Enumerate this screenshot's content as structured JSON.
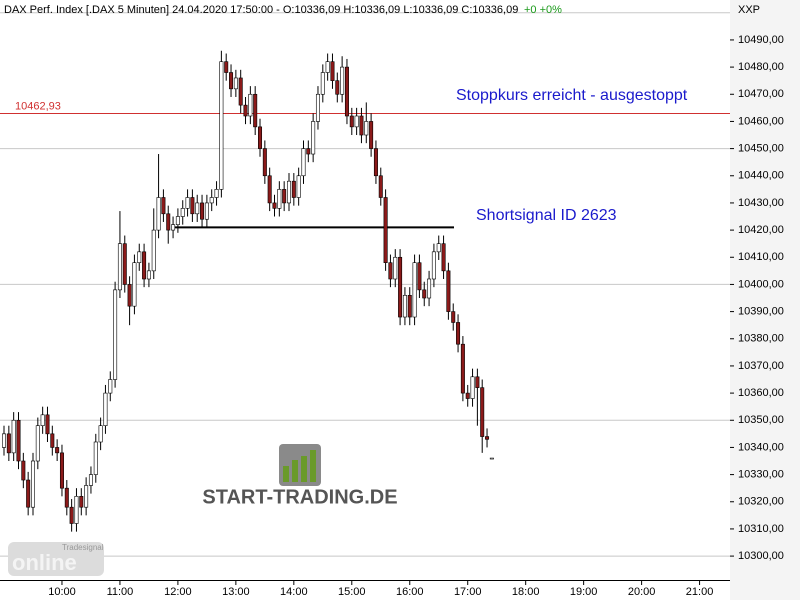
{
  "header": {
    "title": "DAX Perf. Index [.DAX  5 Minuten] 24.04.2020 17:50:00 - O:10336,09 H:10336,09 L:10336,09 C:10336,09",
    "change": "+0 +0%",
    "axis_label": "XXP"
  },
  "watermark": {
    "brand": "START-TRADING.DE",
    "logo_small": "Tradesignal",
    "logo_big": "online"
  },
  "chart_data": {
    "type": "candlestick",
    "annotations": [
      "Stoppkurs erreicht - ausgestoppt",
      "Shortsignal ID 2623"
    ],
    "stop_level": {
      "value": 10462.93,
      "label": "10462,93"
    },
    "signal_level": 10421,
    "ylim": [
      10291.2,
      10504.7
    ],
    "yticks": [
      {
        "value": 10300,
        "label": "10300,00"
      },
      {
        "value": 10310,
        "label": "10310,00"
      },
      {
        "value": 10320,
        "label": "10320,00"
      },
      {
        "value": 10330,
        "label": "10330,00"
      },
      {
        "value": 10340,
        "label": "10340,00"
      },
      {
        "value": 10350,
        "label": "10350,00"
      },
      {
        "value": 10360,
        "label": "10360,00"
      },
      {
        "value": 10370,
        "label": "10370,00"
      },
      {
        "value": 10380,
        "label": "10380,00"
      },
      {
        "value": 10390,
        "label": "10390,00"
      },
      {
        "value": 10400,
        "label": "10400,00"
      },
      {
        "value": 10410,
        "label": "10410,00"
      },
      {
        "value": 10420,
        "label": "10420,00"
      },
      {
        "value": 10430,
        "label": "10430,00"
      },
      {
        "value": 10440,
        "label": "10440,00"
      },
      {
        "value": 10450,
        "label": "10450,00"
      },
      {
        "value": 10460,
        "label": "10460,00"
      },
      {
        "value": 10470,
        "label": "10470,00"
      },
      {
        "value": 10480,
        "label": "10480,00"
      },
      {
        "value": 10490,
        "label": "10490,00"
      }
    ],
    "grid": [
      10300,
      10350,
      10400,
      10450,
      10500
    ],
    "xlim": [
      -0.83,
      150.3
    ],
    "xticks": [
      {
        "value": 12,
        "label": "10:00"
      },
      {
        "value": 24,
        "label": "11:00"
      },
      {
        "value": 36,
        "label": "12:00"
      },
      {
        "value": 48,
        "label": "13:00"
      },
      {
        "value": 60,
        "label": "14:00"
      },
      {
        "value": 72,
        "label": "15:00"
      },
      {
        "value": 84,
        "label": "16:00"
      },
      {
        "value": 96,
        "label": "17:00"
      },
      {
        "value": 108,
        "label": "18:00"
      },
      {
        "value": 120,
        "label": "19:00"
      },
      {
        "value": 132,
        "label": "20:00"
      },
      {
        "value": 144,
        "label": "21:00"
      }
    ],
    "up_color": "#ffffff",
    "down_color": "#8b1a1a",
    "stop_color": "#d03030",
    "open": [
      10340,
      10345,
      10338,
      10350,
      10335,
      10328,
      10318,
      10335,
      10348,
      10352,
      10345,
      10340,
      10338,
      10325,
      10318,
      10312,
      10322,
      10318,
      10326,
      10330,
      10342,
      10348,
      10360,
      10365,
      10398,
      10415,
      10400,
      10392,
      10408,
      10412,
      10402,
      10405,
      10420,
      10432,
      10426,
      10420,
      10422,
      10425,
      10428,
      10432,
      10426,
      10430,
      10424,
      10430,
      10432,
      10435,
      10482,
      10478,
      10472,
      10476,
      10466,
      10462,
      10470,
      10458,
      10450,
      10440,
      10430,
      10428,
      10435,
      10430,
      10438,
      10432,
      10440,
      10450,
      10448,
      10460,
      10470,
      10478,
      10482,
      10475,
      10470,
      10480,
      10462,
      10458,
      10462,
      10455,
      10460,
      10450,
      10440,
      10432,
      10408,
      10402,
      10410,
      10388,
      10396,
      10388,
      10408,
      10398,
      10395,
      10402,
      10412,
      10415,
      10405,
      10390,
      10386,
      10378,
      10360,
      10358,
      10366,
      10362,
      10344,
      10336.09
    ],
    "high": [
      10348,
      10348,
      10353,
      10353,
      10338,
      10331,
      10338,
      10351,
      10355,
      10355,
      10348,
      10343,
      10341,
      10328,
      10321,
      10325,
      10325,
      10329,
      10333,
      10345,
      10351,
      10363,
      10368,
      10401,
      10427,
      10418,
      10403,
      10411,
      10415,
      10415,
      10408,
      10428,
      10448,
      10435,
      10429,
      10425,
      10428,
      10431,
      10435,
      10435,
      10433,
      10433,
      10433,
      10435,
      10438,
      10486,
      10485,
      10481,
      10479,
      10479,
      10469,
      10473,
      10473,
      10461,
      10453,
      10443,
      10433,
      10438,
      10438,
      10441,
      10441,
      10443,
      10453,
      10453,
      10463,
      10473,
      10481,
      10485,
      10485,
      10478,
      10484,
      10483,
      10465,
      10465,
      10465,
      10467,
      10463,
      10453,
      10443,
      10435,
      10411,
      10413,
      10413,
      10399,
      10399,
      10411,
      10411,
      10401,
      10405,
      10415,
      10418,
      10418,
      10408,
      10393,
      10389,
      10381,
      10363,
      10369,
      10369,
      10365,
      10347,
      10336.09
    ],
    "low": [
      10337,
      10335,
      10335,
      10332,
      10325,
      10315,
      10315,
      10332,
      10345,
      10342,
      10337,
      10335,
      10322,
      10315,
      10309,
      10309,
      10315,
      10315,
      10323,
      10327,
      10339,
      10345,
      10357,
      10362,
      10395,
      10397,
      10385,
      10389,
      10405,
      10399,
      10399,
      10402,
      10417,
      10423,
      10415,
      10417,
      10419,
      10422,
      10425,
      10423,
      10423,
      10421,
      10421,
      10427,
      10429,
      10432,
      10475,
      10469,
      10469,
      10463,
      10459,
      10459,
      10455,
      10447,
      10437,
      10427,
      10425,
      10425,
      10427,
      10427,
      10429,
      10429,
      10437,
      10445,
      10445,
      10457,
      10467,
      10475,
      10472,
      10467,
      10467,
      10459,
      10455,
      10455,
      10452,
      10452,
      10447,
      10437,
      10429,
      10405,
      10399,
      10399,
      10385,
      10385,
      10385,
      10385,
      10395,
      10392,
      10392,
      10399,
      10409,
      10402,
      10387,
      10383,
      10375,
      10357,
      10355,
      10355,
      10348,
      10338,
      10340,
      10336.09
    ],
    "close": [
      10345,
      10338,
      10350,
      10335,
      10328,
      10318,
      10335,
      10348,
      10352,
      10345,
      10340,
      10338,
      10325,
      10318,
      10312,
      10322,
      10318,
      10326,
      10330,
      10342,
      10348,
      10360,
      10365,
      10398,
      10415,
      10400,
      10392,
      10408,
      10412,
      10402,
      10405,
      10420,
      10432,
      10426,
      10420,
      10422,
      10425,
      10428,
      10432,
      10426,
      10430,
      10424,
      10430,
      10432,
      10435,
      10482,
      10478,
      10472,
      10476,
      10466,
      10462,
      10470,
      10458,
      10450,
      10440,
      10430,
      10428,
      10435,
      10430,
      10438,
      10432,
      10440,
      10450,
      10448,
      10460,
      10470,
      10478,
      10482,
      10475,
      10470,
      10480,
      10462,
      10458,
      10462,
      10455,
      10460,
      10450,
      10440,
      10432,
      10408,
      10402,
      10410,
      10388,
      10396,
      10388,
      10408,
      10398,
      10395,
      10402,
      10412,
      10415,
      10405,
      10390,
      10386,
      10378,
      10360,
      10358,
      10366,
      10362,
      10344,
      10343,
      10336.09
    ]
  }
}
